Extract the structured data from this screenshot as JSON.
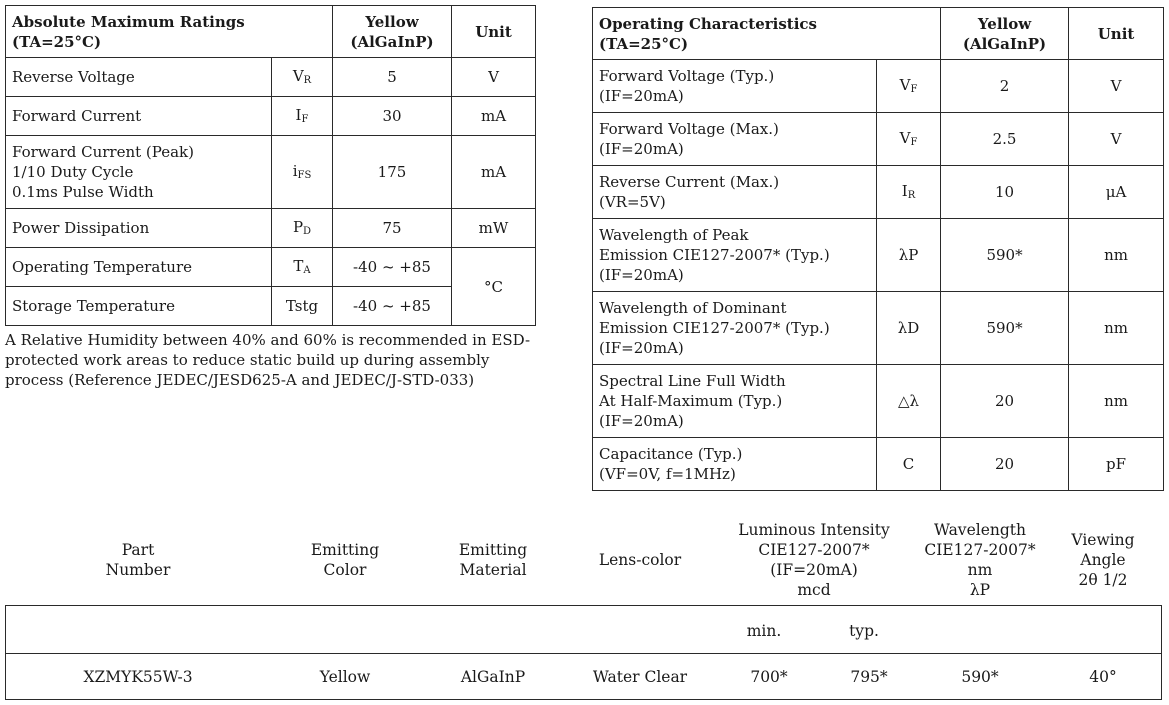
{
  "amr": {
    "title": "Absolute Maximum Ratings",
    "cond": "(TA=25°C)",
    "yellow_l1": "Yellow",
    "yellow_l2": "(AlGaInP)",
    "unit_h": "Unit",
    "rows": [
      {
        "param": "Reverse Voltage",
        "sym": "V",
        "sub": "R",
        "val": "5",
        "unit": "V"
      },
      {
        "param": "Forward Current",
        "sym": "I",
        "sub": "F",
        "val": "30",
        "unit": "mA"
      },
      {
        "param_lines": [
          "Forward Current (Peak)",
          "1/10 Duty Cycle",
          "0.1ms Pulse Width"
        ],
        "sym": "i",
        "sub": "FS",
        "val": "175",
        "unit": "mA"
      },
      {
        "param": "Power Dissipation",
        "sym": "P",
        "sub": "D",
        "val": "75",
        "unit": "mW"
      },
      {
        "param": "Operating Temperature",
        "sym": "T",
        "sub": "A",
        "val": "-40 ~ +85",
        "unit": "°C"
      },
      {
        "param": "Storage Temperature",
        "sym": "Tstg",
        "val": "-40 ~ +85"
      }
    ]
  },
  "note": "A Relative Humidity between 40% and 60% is recommended in ESD-protected work areas to reduce static build up during assembly process (Reference JEDEC/JESD625-A and JEDEC/J-STD-033)",
  "oc": {
    "title": "Operating Characteristics",
    "cond": "(TA=25°C)",
    "yellow_l1": "Yellow",
    "yellow_l2": "(AlGaInP)",
    "unit_h": "Unit",
    "rows": [
      {
        "l1": "Forward Voltage (Typ.)",
        "l2": "(IF=20mA)",
        "sym": "V",
        "sub": "F",
        "val": "2",
        "unit": "V"
      },
      {
        "l1": "Forward Voltage (Max.)",
        "l2": "(IF=20mA)",
        "sym": "V",
        "sub": "F",
        "val": "2.5",
        "unit": "V"
      },
      {
        "l1": "Reverse Current (Max.)",
        "l2": "(VR=5V)",
        "sym": "I",
        "sub": "R",
        "val": "10",
        "unit": "μA"
      },
      {
        "l1": "Wavelength of Peak",
        "l2": "Emission  CIE127-2007* (Typ.)",
        "l3": "(IF=20mA)",
        "sym": "λP",
        "val": "590*",
        "unit": "nm"
      },
      {
        "l1": "Wavelength of Dominant",
        "l2": "Emission  CIE127-2007* (Typ.)",
        "l3": "(IF=20mA)",
        "sym": "λD",
        "val": "590*",
        "unit": "nm"
      },
      {
        "l1": "Spectral Line Full Width",
        "l2": "At Half-Maximum (Typ.)",
        "l3": "(IF=20mA)",
        "sym": "△λ",
        "val": "20",
        "unit": "nm"
      },
      {
        "l1": "Capacitance (Typ.)",
        "l2": "(VF=0V, f=1MHz)",
        "sym": "C",
        "val": "20",
        "unit": "pF"
      }
    ]
  },
  "parts": {
    "headers": {
      "part": [
        "Part",
        "Number"
      ],
      "color": [
        "Emitting",
        "Color"
      ],
      "material": [
        "Emitting",
        "Material"
      ],
      "lens": [
        "Lens-color"
      ],
      "lum": [
        "Luminous Intensity",
        "CIE127-2007*",
        "(IF=20mA)",
        "mcd"
      ],
      "wave": [
        "Wavelength",
        "CIE127-2007*",
        "nm",
        "λP"
      ],
      "view": [
        "Viewing",
        "Angle",
        "2θ 1/2"
      ]
    },
    "sub_min": "min.",
    "sub_typ": "typ.",
    "row": {
      "part": "XZMYK55W-3",
      "color": "Yellow",
      "material": "AlGaInP",
      "lens": "Water Clear",
      "min": "700*",
      "typ": "795*",
      "wave": "590*",
      "view": "40°"
    }
  }
}
